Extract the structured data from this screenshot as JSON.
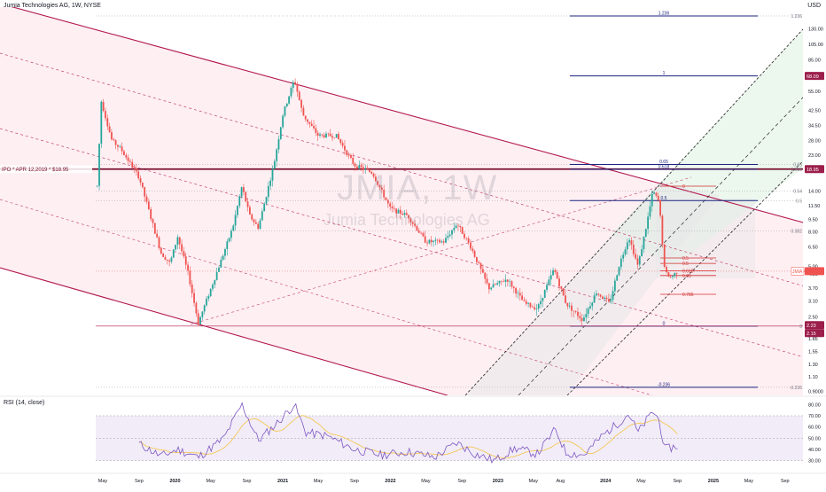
{
  "chart_title": "Jumia Technologies AG, 1W, NYSE",
  "currency": "USD",
  "watermark_symbol": "JMIA, 1W",
  "watermark_name": "Jumia Technologies AG",
  "ipo_label": "IPO * APR 12,2019 * $18.95",
  "ipo_price": 18.95,
  "last_tag": {
    "text": "JMIA  4.67",
    "value": 4.67,
    "color": "#ef5350"
  },
  "price_axis_ticks": [
    "130.00",
    "105.00",
    "85.00",
    "68.00",
    "55.00",
    "42.50",
    "34.50",
    "28.00",
    "23.00",
    "18.95",
    "14.00",
    "11.50",
    "9.50",
    "8.00",
    "6.50",
    "5.00",
    "4.50",
    "3.70",
    "3.10",
    "2.50",
    "2.20",
    "1.85",
    "1.55",
    "1.30",
    "1.10",
    "0.9000"
  ],
  "price_tags": [
    {
      "text": "68.09",
      "value": 68.09,
      "color": "#9c1e4a"
    },
    {
      "text": "18.95",
      "value": 18.95,
      "color": "#9c1e4a"
    },
    {
      "text": "2.23",
      "value": 2.23,
      "color": "#9c1e4a"
    },
    {
      "text": "2.15",
      "value": 2.15,
      "color": "#9c1e4a"
    }
  ],
  "fib_levels": [
    {
      "label": "1.236",
      "value": 155,
      "color": "#1a237e"
    },
    {
      "label": "1",
      "value": 68.09,
      "color": "#1a237e"
    },
    {
      "label": "0.65",
      "value": 20.2,
      "color": "#1a237e"
    },
    {
      "label": "0.618",
      "value": 18.9,
      "color": "#1a237e"
    },
    {
      "label": "0.5",
      "value": 12.3,
      "color": "#1a237e"
    },
    {
      "label": "0",
      "value": 2.2,
      "color": "#1a237e"
    },
    {
      "label": "-0.236",
      "value": 0.95,
      "color": "#1a237e"
    }
  ],
  "right_dotted_labels": [
    {
      "label": "1.236",
      "value": 155
    },
    {
      "label": "0.65",
      "value": 20.2
    },
    {
      "label": "0.618",
      "value": 18.9
    },
    {
      "label": "0.54",
      "value": 14.0
    },
    {
      "label": "0.5",
      "value": 12.3
    },
    {
      "label": "0.382",
      "value": 8.1
    },
    {
      "label": "0",
      "value": 2.2
    },
    {
      "label": "-0.236",
      "value": 0.95
    }
  ],
  "short_fib_levels": [
    {
      "label": "0",
      "value": 15.0
    },
    {
      "label": "0.5",
      "value": 5.6
    },
    {
      "label": "0.5",
      "value": 5.2
    },
    {
      "label": "0.618",
      "value": 4.7
    },
    {
      "label": "0.65",
      "value": 4.4
    },
    {
      "label": "0.786",
      "value": 3.4
    }
  ],
  "x_axis_labels": [
    "May",
    "Sep",
    "2020",
    "May",
    "Sep",
    "2021",
    "May",
    "Sep",
    "2022",
    "May",
    "Sep",
    "2023",
    "May",
    "Aug",
    "2024",
    "May",
    "Sep",
    "2025",
    "May",
    "Sep"
  ],
  "rsi": {
    "title": "RSI (14, close)",
    "ticks": [
      "80.00",
      "70.00",
      "60.00",
      "50.00",
      "40.00",
      "30.00"
    ],
    "upper": 70,
    "lower": 30
  },
  "colors": {
    "candle_up": "#26a69a",
    "candle_down": "#ef5350",
    "channel": "#b2184e",
    "channel_fill": "#fde8ee",
    "green_fill": "#e7f5ea",
    "rsi_line": "#7e57c2",
    "rsi_ma": "#f5c342",
    "rsi_band": "#ede7f6"
  },
  "chart_data": {
    "type": "candlestick",
    "title": "Jumia Technologies AG, 1W, NYSE",
    "scale": "log",
    "ylim": [
      0.85,
      175
    ],
    "x_range": [
      "2019-04",
      "2025-11"
    ],
    "anchors": [
      {
        "date": "2019-04-12",
        "price": 15
      },
      {
        "date": "2019-04-26",
        "price": 48
      },
      {
        "date": "2019-06-01",
        "price": 28
      },
      {
        "date": "2019-07-01",
        "price": 25
      },
      {
        "date": "2019-09-01",
        "price": 17
      },
      {
        "date": "2019-11-15",
        "price": 6
      },
      {
        "date": "2019-12-15",
        "price": 5.2
      },
      {
        "date": "2020-01-10",
        "price": 7.5
      },
      {
        "date": "2020-02-15",
        "price": 4.5
      },
      {
        "date": "2020-03-20",
        "price": 2.3
      },
      {
        "date": "2020-05-20",
        "price": 4.5
      },
      {
        "date": "2020-07-15",
        "price": 8.5
      },
      {
        "date": "2020-08-15",
        "price": 15
      },
      {
        "date": "2020-09-10",
        "price": 10
      },
      {
        "date": "2020-10-10",
        "price": 8.5
      },
      {
        "date": "2020-12-01",
        "price": 20
      },
      {
        "date": "2021-01-01",
        "price": 40
      },
      {
        "date": "2021-02-09",
        "price": 65
      },
      {
        "date": "2021-03-10",
        "price": 40
      },
      {
        "date": "2021-05-01",
        "price": 30
      },
      {
        "date": "2021-07-01",
        "price": 30
      },
      {
        "date": "2021-09-01",
        "price": 20
      },
      {
        "date": "2021-11-01",
        "price": 18
      },
      {
        "date": "2022-01-01",
        "price": 11
      },
      {
        "date": "2022-03-01",
        "price": 10
      },
      {
        "date": "2022-05-01",
        "price": 7
      },
      {
        "date": "2022-07-01",
        "price": 7
      },
      {
        "date": "2022-08-15",
        "price": 9
      },
      {
        "date": "2022-10-01",
        "price": 6.5
      },
      {
        "date": "2022-12-01",
        "price": 3.7
      },
      {
        "date": "2023-02-01",
        "price": 4.2
      },
      {
        "date": "2023-04-01",
        "price": 3.0
      },
      {
        "date": "2023-05-15",
        "price": 2.8
      },
      {
        "date": "2023-07-10",
        "price": 4.8
      },
      {
        "date": "2023-08-20",
        "price": 3.0
      },
      {
        "date": "2023-10-15",
        "price": 2.4
      },
      {
        "date": "2023-12-01",
        "price": 3.5
      },
      {
        "date": "2024-01-15",
        "price": 3.0
      },
      {
        "date": "2024-02-15",
        "price": 5.0
      },
      {
        "date": "2024-03-20",
        "price": 7.5
      },
      {
        "date": "2024-04-20",
        "price": 5.0
      },
      {
        "date": "2024-05-20",
        "price": 9.0
      },
      {
        "date": "2024-06-10",
        "price": 14.0
      },
      {
        "date": "2024-07-01",
        "price": 12.0
      },
      {
        "date": "2024-07-20",
        "price": 4.6
      },
      {
        "date": "2024-08-10",
        "price": 4.3
      },
      {
        "date": "2024-09-01",
        "price": 4.67
      }
    ],
    "rsi_anchors": [
      {
        "date": "2019-09-01",
        "value": 45
      },
      {
        "date": "2019-11-15",
        "value": 34
      },
      {
        "date": "2020-01-10",
        "value": 40
      },
      {
        "date": "2020-03-20",
        "value": 33
      },
      {
        "date": "2020-06-15",
        "value": 50
      },
      {
        "date": "2020-08-15",
        "value": 80
      },
      {
        "date": "2020-10-10",
        "value": 48
      },
      {
        "date": "2020-12-15",
        "value": 64
      },
      {
        "date": "2021-02-09",
        "value": 80
      },
      {
        "date": "2021-03-20",
        "value": 55
      },
      {
        "date": "2021-06-01",
        "value": 52
      },
      {
        "date": "2021-09-01",
        "value": 40
      },
      {
        "date": "2021-12-01",
        "value": 35
      },
      {
        "date": "2022-03-01",
        "value": 38
      },
      {
        "date": "2022-06-01",
        "value": 33
      },
      {
        "date": "2022-08-15",
        "value": 46
      },
      {
        "date": "2022-10-15",
        "value": 36
      },
      {
        "date": "2022-12-20",
        "value": 30
      },
      {
        "date": "2023-03-01",
        "value": 41
      },
      {
        "date": "2023-05-15",
        "value": 36
      },
      {
        "date": "2023-07-15",
        "value": 58
      },
      {
        "date": "2023-08-20",
        "value": 37
      },
      {
        "date": "2023-10-20",
        "value": 35
      },
      {
        "date": "2023-12-20",
        "value": 52
      },
      {
        "date": "2024-02-20",
        "value": 65
      },
      {
        "date": "2024-03-20",
        "value": 72
      },
      {
        "date": "2024-04-20",
        "value": 55
      },
      {
        "date": "2024-06-10",
        "value": 74
      },
      {
        "date": "2024-07-01",
        "value": 66
      },
      {
        "date": "2024-07-20",
        "value": 40
      },
      {
        "date": "2024-09-01",
        "value": 43
      }
    ]
  }
}
